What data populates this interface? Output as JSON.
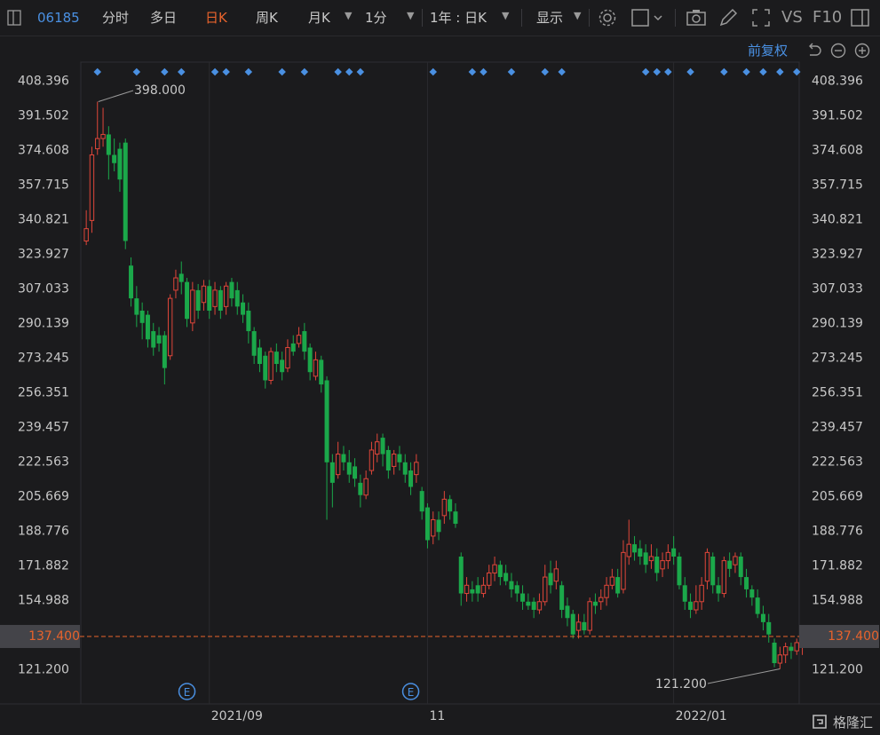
{
  "toolbar": {
    "code": "06185",
    "tabs": [
      "分时",
      "多日",
      "日K",
      "周K",
      "月K",
      "1分"
    ],
    "active_tab": "日K",
    "range_label": "1年 : 日K",
    "display_label": "显示",
    "vs_label": "VS",
    "f10_label": "F10"
  },
  "adjust_label": "前复权",
  "current_price_label": "137.400",
  "colors": {
    "up": "#e0463a",
    "down": "#1ba84a",
    "accent": "#4a90e2",
    "price_line": "#e8632c"
  },
  "event_marker_letter": "E",
  "watermark": "格隆汇",
  "chart_data": {
    "type": "candlestick",
    "y_ticks": [
      "408.396",
      "391.502",
      "374.608",
      "357.715",
      "340.821",
      "323.927",
      "307.033",
      "290.139",
      "273.245",
      "256.351",
      "239.457",
      "222.563",
      "205.669",
      "188.776",
      "171.882",
      "154.988",
      "137.400",
      "121.200"
    ],
    "y_tick_values": [
      408.396,
      391.502,
      374.608,
      357.715,
      340.821,
      323.927,
      307.033,
      290.139,
      273.245,
      256.351,
      239.457,
      222.563,
      205.669,
      188.776,
      171.882,
      154.988,
      137.4,
      121.2
    ],
    "ylim": [
      107.0,
      420.0
    ],
    "x_labels": [
      "2021/09",
      "11",
      "2022/01"
    ],
    "x_label_bar_index": [
      22,
      61,
      105
    ],
    "max_annotation": {
      "label": "398.000",
      "value": 398.0,
      "bar_index": 2
    },
    "min_annotation": {
      "label": "121.200",
      "value": 121.2,
      "bar_index": 124
    },
    "current_price": 137.4,
    "event_markers_bar_index": [
      18,
      58
    ],
    "dividend_dots_bar_index": [
      2,
      9,
      14,
      17,
      23,
      25,
      29,
      35,
      39,
      45,
      47,
      49,
      62,
      69,
      71,
      76,
      82,
      85,
      100,
      102,
      104,
      108,
      114,
      118,
      121,
      124,
      127
    ],
    "candles": [
      {
        "o": 330,
        "c": 336,
        "h": 345,
        "l": 328
      },
      {
        "o": 340,
        "c": 372,
        "h": 376,
        "l": 334
      },
      {
        "o": 375,
        "c": 380,
        "h": 398,
        "l": 372
      },
      {
        "o": 380,
        "c": 382,
        "h": 395,
        "l": 376
      },
      {
        "o": 382,
        "c": 372,
        "h": 386,
        "l": 360
      },
      {
        "o": 372,
        "c": 368,
        "h": 380,
        "l": 364
      },
      {
        "o": 375,
        "c": 360,
        "h": 378,
        "l": 354
      },
      {
        "o": 378,
        "c": 330,
        "h": 380,
        "l": 326
      },
      {
        "o": 318,
        "c": 302,
        "h": 322,
        "l": 298
      },
      {
        "o": 302,
        "c": 294,
        "h": 308,
        "l": 288
      },
      {
        "o": 296,
        "c": 290,
        "h": 300,
        "l": 282
      },
      {
        "o": 294,
        "c": 282,
        "h": 296,
        "l": 278
      },
      {
        "o": 286,
        "c": 278,
        "h": 290,
        "l": 274
      },
      {
        "o": 284,
        "c": 280,
        "h": 288,
        "l": 276
      },
      {
        "o": 284,
        "c": 268,
        "h": 286,
        "l": 260
      },
      {
        "o": 274,
        "c": 302,
        "h": 304,
        "l": 272
      },
      {
        "o": 306,
        "c": 312,
        "h": 316,
        "l": 302
      },
      {
        "o": 314,
        "c": 310,
        "h": 320,
        "l": 304
      },
      {
        "o": 310,
        "c": 292,
        "h": 312,
        "l": 288
      },
      {
        "o": 290,
        "c": 306,
        "h": 310,
        "l": 286
      },
      {
        "o": 306,
        "c": 296,
        "h": 309,
        "l": 292
      },
      {
        "o": 300,
        "c": 308,
        "h": 311,
        "l": 296
      },
      {
        "o": 308,
        "c": 296,
        "h": 311,
        "l": 292
      },
      {
        "o": 298,
        "c": 306,
        "h": 310,
        "l": 294
      },
      {
        "o": 306,
        "c": 296,
        "h": 308,
        "l": 292
      },
      {
        "o": 298,
        "c": 308,
        "h": 310,
        "l": 294
      },
      {
        "o": 310,
        "c": 302,
        "h": 312,
        "l": 298
      },
      {
        "o": 306,
        "c": 298,
        "h": 310,
        "l": 294
      },
      {
        "o": 300,
        "c": 294,
        "h": 304,
        "l": 290
      },
      {
        "o": 296,
        "c": 286,
        "h": 300,
        "l": 280
      },
      {
        "o": 286,
        "c": 274,
        "h": 288,
        "l": 270
      },
      {
        "o": 278,
        "c": 270,
        "h": 282,
        "l": 266
      },
      {
        "o": 274,
        "c": 262,
        "h": 276,
        "l": 258
      },
      {
        "o": 262,
        "c": 276,
        "h": 278,
        "l": 260
      },
      {
        "o": 276,
        "c": 270,
        "h": 280,
        "l": 266
      },
      {
        "o": 272,
        "c": 266,
        "h": 276,
        "l": 262
      },
      {
        "o": 268,
        "c": 278,
        "h": 282,
        "l": 266
      },
      {
        "o": 280,
        "c": 276,
        "h": 284,
        "l": 274
      },
      {
        "o": 280,
        "c": 284,
        "h": 288,
        "l": 278
      },
      {
        "o": 286,
        "c": 276,
        "h": 290,
        "l": 272
      },
      {
        "o": 278,
        "c": 266,
        "h": 280,
        "l": 262
      },
      {
        "o": 264,
        "c": 272,
        "h": 276,
        "l": 262
      },
      {
        "o": 272,
        "c": 260,
        "h": 274,
        "l": 256
      },
      {
        "o": 262,
        "c": 222,
        "h": 264,
        "l": 194
      },
      {
        "o": 222,
        "c": 212,
        "h": 226,
        "l": 200
      },
      {
        "o": 216,
        "c": 226,
        "h": 232,
        "l": 214
      },
      {
        "o": 226,
        "c": 222,
        "h": 230,
        "l": 218
      },
      {
        "o": 222,
        "c": 216,
        "h": 228,
        "l": 212
      },
      {
        "o": 220,
        "c": 214,
        "h": 224,
        "l": 210
      },
      {
        "o": 212,
        "c": 206,
        "h": 216,
        "l": 200
      },
      {
        "o": 206,
        "c": 214,
        "h": 218,
        "l": 204
      },
      {
        "o": 218,
        "c": 228,
        "h": 232,
        "l": 216
      },
      {
        "o": 226,
        "c": 232,
        "h": 236,
        "l": 222
      },
      {
        "o": 234,
        "c": 226,
        "h": 236,
        "l": 220
      },
      {
        "o": 228,
        "c": 218,
        "h": 230,
        "l": 214
      },
      {
        "o": 220,
        "c": 226,
        "h": 228,
        "l": 216
      },
      {
        "o": 226,
        "c": 222,
        "h": 230,
        "l": 218
      },
      {
        "o": 222,
        "c": 216,
        "h": 226,
        "l": 212
      },
      {
        "o": 218,
        "c": 210,
        "h": 222,
        "l": 206
      },
      {
        "o": 216,
        "c": 222,
        "h": 226,
        "l": 212
      },
      {
        "o": 208,
        "c": 198,
        "h": 210,
        "l": 194
      },
      {
        "o": 200,
        "c": 184,
        "h": 202,
        "l": 180
      },
      {
        "o": 186,
        "c": 194,
        "h": 198,
        "l": 182
      },
      {
        "o": 194,
        "c": 188,
        "h": 198,
        "l": 184
      },
      {
        "o": 196,
        "c": 204,
        "h": 208,
        "l": 192
      },
      {
        "o": 204,
        "c": 198,
        "h": 206,
        "l": 194
      },
      {
        "o": 198,
        "c": 192,
        "h": 202,
        "l": 190
      },
      {
        "o": 176,
        "c": 158,
        "h": 178,
        "l": 152
      },
      {
        "o": 158,
        "c": 162,
        "h": 166,
        "l": 154
      },
      {
        "o": 160,
        "c": 158,
        "h": 164,
        "l": 154
      },
      {
        "o": 162,
        "c": 158,
        "h": 166,
        "l": 154
      },
      {
        "o": 158,
        "c": 162,
        "h": 166,
        "l": 156
      },
      {
        "o": 162,
        "c": 168,
        "h": 172,
        "l": 160
      },
      {
        "o": 168,
        "c": 172,
        "h": 176,
        "l": 164
      },
      {
        "o": 172,
        "c": 166,
        "h": 174,
        "l": 162
      },
      {
        "o": 168,
        "c": 164,
        "h": 172,
        "l": 162
      },
      {
        "o": 164,
        "c": 160,
        "h": 168,
        "l": 156
      },
      {
        "o": 162,
        "c": 158,
        "h": 164,
        "l": 154
      },
      {
        "o": 158,
        "c": 154,
        "h": 162,
        "l": 150
      },
      {
        "o": 154,
        "c": 152,
        "h": 158,
        "l": 150
      },
      {
        "o": 154,
        "c": 150,
        "h": 156,
        "l": 146
      },
      {
        "o": 150,
        "c": 154,
        "h": 158,
        "l": 148
      },
      {
        "o": 154,
        "c": 166,
        "h": 172,
        "l": 152
      },
      {
        "o": 168,
        "c": 162,
        "h": 174,
        "l": 158
      },
      {
        "o": 164,
        "c": 170,
        "h": 174,
        "l": 160
      },
      {
        "o": 162,
        "c": 150,
        "h": 164,
        "l": 146
      },
      {
        "o": 152,
        "c": 146,
        "h": 156,
        "l": 142
      },
      {
        "o": 148,
        "c": 138,
        "h": 150,
        "l": 136
      },
      {
        "o": 140,
        "c": 144,
        "h": 148,
        "l": 136
      },
      {
        "o": 144,
        "c": 140,
        "h": 148,
        "l": 138
      },
      {
        "o": 140,
        "c": 154,
        "h": 156,
        "l": 138
      },
      {
        "o": 154,
        "c": 152,
        "h": 158,
        "l": 148
      },
      {
        "o": 154,
        "c": 156,
        "h": 160,
        "l": 150
      },
      {
        "o": 156,
        "c": 162,
        "h": 166,
        "l": 152
      },
      {
        "o": 162,
        "c": 166,
        "h": 170,
        "l": 160
      },
      {
        "o": 166,
        "c": 158,
        "h": 170,
        "l": 156
      },
      {
        "o": 160,
        "c": 178,
        "h": 184,
        "l": 158
      },
      {
        "o": 176,
        "c": 182,
        "h": 194,
        "l": 172
      },
      {
        "o": 182,
        "c": 178,
        "h": 186,
        "l": 174
      },
      {
        "o": 180,
        "c": 176,
        "h": 184,
        "l": 172
      },
      {
        "o": 178,
        "c": 172,
        "h": 182,
        "l": 168
      },
      {
        "o": 174,
        "c": 176,
        "h": 182,
        "l": 170
      },
      {
        "o": 176,
        "c": 168,
        "h": 180,
        "l": 164
      },
      {
        "o": 170,
        "c": 174,
        "h": 178,
        "l": 166
      },
      {
        "o": 174,
        "c": 178,
        "h": 182,
        "l": 170
      },
      {
        "o": 180,
        "c": 176,
        "h": 186,
        "l": 172
      },
      {
        "o": 176,
        "c": 162,
        "h": 178,
        "l": 160
      },
      {
        "o": 162,
        "c": 154,
        "h": 166,
        "l": 150
      },
      {
        "o": 154,
        "c": 150,
        "h": 158,
        "l": 146
      },
      {
        "o": 150,
        "c": 154,
        "h": 162,
        "l": 148
      },
      {
        "o": 154,
        "c": 162,
        "h": 166,
        "l": 150
      },
      {
        "o": 164,
        "c": 178,
        "h": 180,
        "l": 160
      },
      {
        "o": 176,
        "c": 162,
        "h": 178,
        "l": 158
      },
      {
        "o": 162,
        "c": 158,
        "h": 166,
        "l": 154
      },
      {
        "o": 158,
        "c": 174,
        "h": 176,
        "l": 156
      },
      {
        "o": 174,
        "c": 170,
        "h": 178,
        "l": 166
      },
      {
        "o": 172,
        "c": 176,
        "h": 178,
        "l": 168
      },
      {
        "o": 176,
        "c": 166,
        "h": 178,
        "l": 162
      },
      {
        "o": 166,
        "c": 160,
        "h": 170,
        "l": 156
      },
      {
        "o": 160,
        "c": 156,
        "h": 162,
        "l": 152
      },
      {
        "o": 156,
        "c": 148,
        "h": 160,
        "l": 146
      },
      {
        "o": 148,
        "c": 144,
        "h": 152,
        "l": 140
      },
      {
        "o": 144,
        "c": 138,
        "h": 148,
        "l": 134
      },
      {
        "o": 134,
        "c": 124,
        "h": 136,
        "l": 122
      },
      {
        "o": 124,
        "c": 128,
        "h": 132,
        "l": 121.2
      },
      {
        "o": 128,
        "c": 132,
        "h": 134,
        "l": 124
      },
      {
        "o": 132,
        "c": 130,
        "h": 134,
        "l": 126
      },
      {
        "o": 130,
        "c": 134,
        "h": 136,
        "l": 128
      },
      {
        "o": 132,
        "c": 134,
        "h": 136,
        "l": 128
      },
      {
        "o": 134,
        "c": 138,
        "h": 140,
        "l": 132
      }
    ]
  }
}
